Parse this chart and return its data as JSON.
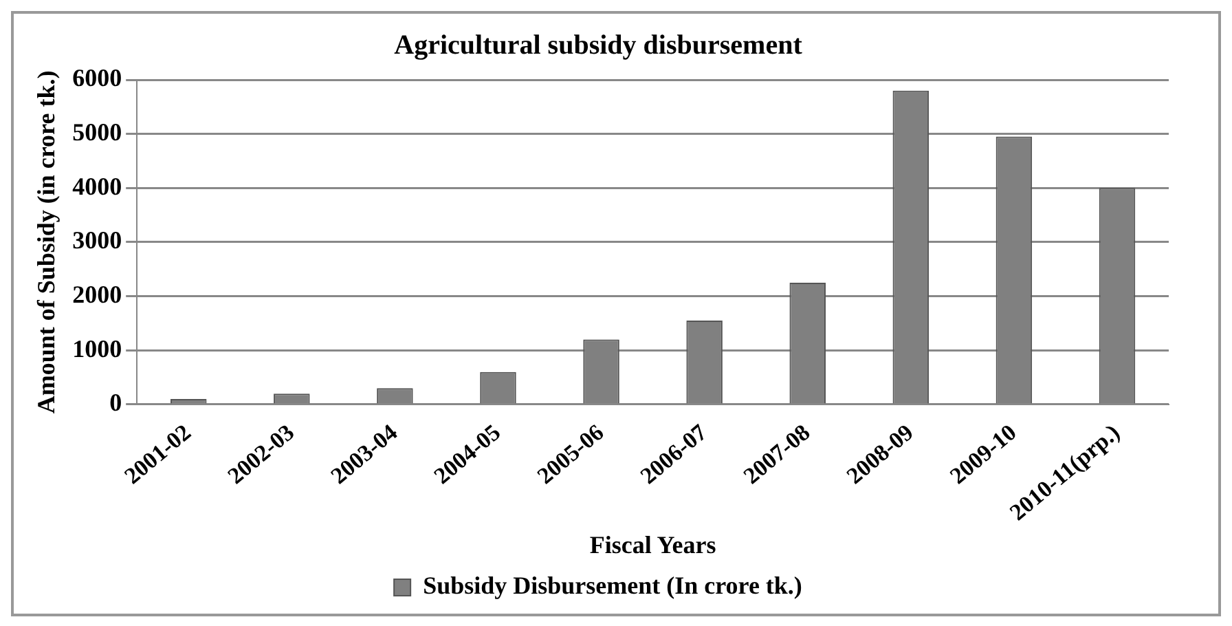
{
  "chart_data": {
    "type": "bar",
    "title": "Agricultural subsidy disbursement",
    "xlabel": "Fiscal Years",
    "ylabel": "Amount of Subsidy (in crore tk.)",
    "categories": [
      "2001-02",
      "2002-03",
      "2003-04",
      "2004-05",
      "2005-06",
      "2006-07",
      "2007-08",
      "2008-09",
      "2009-10",
      "2010-11(prp.)"
    ],
    "series": [
      {
        "name": "Subsidy Disbursement (In crore tk.)",
        "color": "#808080",
        "values": [
          100,
          200,
          300,
          600,
          1200,
          1550,
          2250,
          5800,
          4950,
          4000
        ]
      }
    ],
    "ylim": [
      0,
      6000
    ],
    "yticks": [
      0,
      1000,
      2000,
      3000,
      4000,
      5000,
      6000
    ],
    "grid": "y",
    "legend": "bottom"
  }
}
